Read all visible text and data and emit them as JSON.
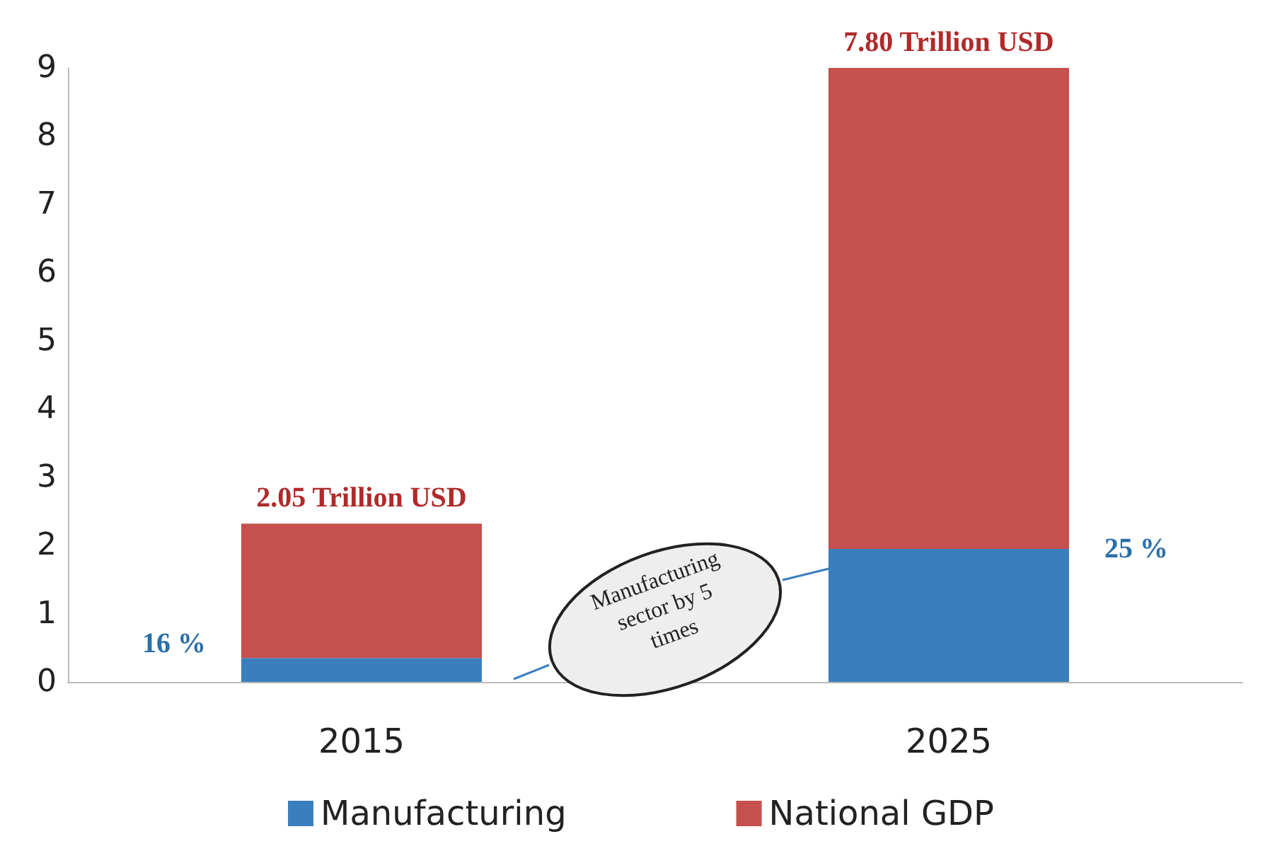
{
  "chart_data": {
    "type": "bar",
    "stacked": true,
    "categories": [
      "2015",
      "2025"
    ],
    "series": [
      {
        "name": "Manufacturing",
        "color": "#3a7fbd",
        "values": [
          0.35,
          1.95
        ]
      },
      {
        "name": "National GDP",
        "color": "#c5504d",
        "values": [
          1.97,
          7.05
        ]
      }
    ],
    "ylim": [
      0,
      9
    ],
    "yticks": [
      0,
      1,
      2,
      3,
      4,
      5,
      6,
      7,
      8,
      9
    ],
    "grid": false,
    "legend": "bottom",
    "annotations": [
      "16 %",
      "25 %",
      {
        "text": "2.05 Trillion USD",
        "x": "2015",
        "y": 2.32
      },
      {
        "text": "7.80 Trillion USD",
        "x": "2025",
        "y": 9
      },
      "Manufacturing sector by 5 times"
    ]
  }
}
